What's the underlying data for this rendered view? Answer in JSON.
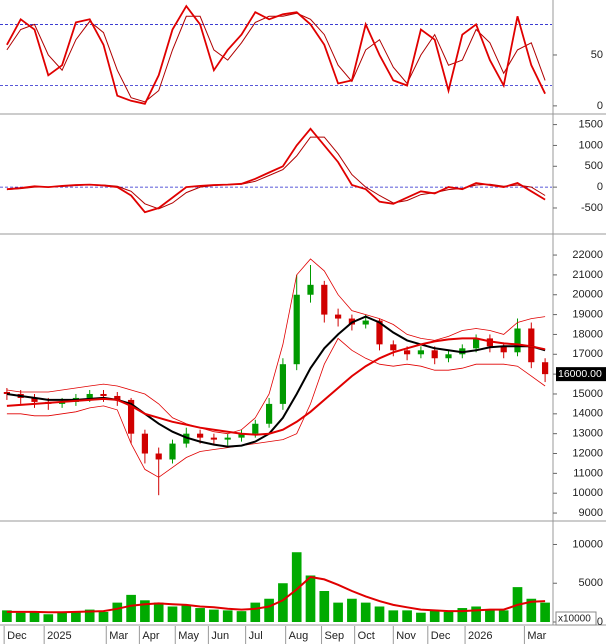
{
  "chart_data": [
    {
      "type": "line",
      "ylim": [
        -7,
        104
      ],
      "yticks": [
        0,
        50
      ],
      "ref_lines": [
        80,
        20
      ],
      "ref_color": "#2222cc",
      "series": [
        {
          "color": "#e00000",
          "values": [
            60,
            85,
            75,
            30,
            40,
            82,
            85,
            60,
            10,
            5,
            2,
            30,
            75,
            98,
            80,
            35,
            55,
            70,
            92,
            85,
            90,
            92,
            80,
            60,
            22,
            25,
            80,
            50,
            25,
            20,
            75,
            65,
            15,
            70,
            80,
            45,
            20,
            88,
            40,
            12
          ]
        },
        {
          "color": "#b00000",
          "values": [
            55,
            75,
            80,
            50,
            35,
            65,
            83,
            72,
            35,
            8,
            4,
            15,
            55,
            88,
            88,
            55,
            45,
            62,
            82,
            88,
            88,
            91,
            85,
            70,
            40,
            24,
            55,
            65,
            38,
            22,
            50,
            70,
            40,
            45,
            75,
            62,
            32,
            55,
            62,
            25
          ]
        }
      ]
    },
    {
      "type": "line",
      "ylim": [
        -1100,
        1730
      ],
      "yticks": [
        -500,
        0,
        500,
        1000,
        1500
      ],
      "ref_lines": [
        0
      ],
      "ref_color": "#2222cc",
      "series": [
        {
          "color": "#e00000",
          "values": [
            -50,
            -20,
            20,
            0,
            30,
            50,
            60,
            40,
            0,
            -200,
            -600,
            -500,
            -250,
            0,
            30,
            50,
            60,
            80,
            200,
            350,
            500,
            1000,
            1400,
            1000,
            600,
            50,
            -50,
            -350,
            -400,
            -250,
            -100,
            -150,
            0,
            -50,
            100,
            50,
            0,
            100,
            -100,
            -300
          ]
        },
        {
          "color": "#b00000",
          "values": [
            -60,
            -35,
            0,
            5,
            15,
            40,
            55,
            50,
            20,
            -100,
            -400,
            -520,
            -380,
            -130,
            0,
            40,
            55,
            70,
            140,
            280,
            420,
            750,
            1200,
            1200,
            800,
            300,
            0,
            -200,
            -380,
            -320,
            -180,
            -130,
            -60,
            -30,
            50,
            70,
            20,
            50,
            0,
            -200
          ]
        }
      ]
    },
    {
      "type": "candlestick",
      "ylim": [
        8650,
        22960
      ],
      "yticks": [
        9000,
        10000,
        11000,
        12000,
        13000,
        14000,
        15000,
        16000,
        17000,
        18000,
        19000,
        20000,
        21000,
        22000
      ],
      "up_color": "#009a00",
      "down_color": "#d00000",
      "open": [
        15100,
        15000,
        14800,
        14600,
        14500,
        14600,
        14800,
        15000,
        14900,
        14700,
        13000,
        12000,
        11700,
        12500,
        13000,
        12800,
        12700,
        12800,
        13000,
        13500,
        14500,
        16500,
        20000,
        20500,
        19000,
        18800,
        18500,
        18700,
        17500,
        17200,
        17000,
        17200,
        16800,
        17000,
        17300,
        17800,
        17400,
        17100,
        18300,
        16600
      ],
      "high": [
        15300,
        15200,
        15000,
        14800,
        14800,
        15000,
        15200,
        15200,
        15100,
        14800,
        13200,
        12300,
        12700,
        13300,
        13200,
        13000,
        13000,
        13200,
        13700,
        14800,
        16800,
        21000,
        21500,
        20700,
        19300,
        19000,
        19000,
        18800,
        17700,
        17400,
        17400,
        17400,
        17200,
        17500,
        18000,
        18000,
        17600,
        18800,
        18600,
        16800
      ],
      "low": [
        14700,
        14500,
        14300,
        14200,
        14300,
        14400,
        14600,
        14600,
        14400,
        12500,
        11500,
        9900,
        11500,
        12300,
        12500,
        12400,
        12400,
        12600,
        12800,
        13300,
        14200,
        16200,
        19600,
        18600,
        18400,
        18200,
        18300,
        17200,
        16900,
        16700,
        16800,
        16500,
        16600,
        16800,
        17100,
        17100,
        16800,
        16900,
        16300,
        15600
      ],
      "close": [
        15000,
        14800,
        14600,
        14500,
        14600,
        14800,
        15000,
        14900,
        14700,
        13000,
        12000,
        11700,
        12500,
        13000,
        12800,
        12700,
        12800,
        13000,
        13500,
        14500,
        16500,
        20000,
        20500,
        19000,
        18800,
        18500,
        18700,
        17500,
        17200,
        17000,
        17200,
        16800,
        17000,
        17300,
        17800,
        17400,
        17100,
        18300,
        16600,
        16000
      ],
      "overlays": [
        {
          "color": "#e00000",
          "width": 0.8,
          "values": [
            15200,
            15100,
            15100,
            15100,
            15200,
            15300,
            15400,
            15500,
            15400,
            15200,
            15000,
            14500,
            13800,
            13500,
            13300,
            13100,
            13000,
            13200,
            13800,
            15000,
            17500,
            21000,
            21800,
            21200,
            20000,
            19200,
            19000,
            18800,
            18500,
            18000,
            17800,
            17700,
            17900,
            18200,
            18300,
            18200,
            18000,
            18600,
            18800,
            18900
          ]
        },
        {
          "color": "#e00000",
          "width": 0.8,
          "values": [
            14000,
            14000,
            13900,
            13900,
            14000,
            14100,
            14300,
            14400,
            14200,
            12500,
            11200,
            10800,
            11300,
            11800,
            12100,
            12200,
            12300,
            12400,
            12500,
            12600,
            12700,
            13000,
            14500,
            16500,
            17800,
            17200,
            16800,
            16500,
            16400,
            16500,
            16400,
            16200,
            16200,
            16300,
            16500,
            16500,
            16500,
            16400,
            15900,
            15400
          ]
        },
        {
          "color": "#000000",
          "width": 2,
          "values": [
            15000,
            14900,
            14800,
            14700,
            14700,
            14700,
            14750,
            14800,
            14700,
            14500,
            14000,
            13500,
            13100,
            12800,
            12600,
            12450,
            12350,
            12400,
            12600,
            13000,
            13800,
            15000,
            16300,
            17300,
            18000,
            18600,
            18900,
            18600,
            18100,
            17700,
            17500,
            17300,
            17200,
            17100,
            17200,
            17350,
            17400,
            17400,
            17400,
            17200
          ]
        },
        {
          "color": "#e00000",
          "width": 2,
          "values": [
            14400,
            14450,
            14500,
            14550,
            14600,
            14650,
            14700,
            14750,
            14700,
            14400,
            14000,
            13800,
            13600,
            13450,
            13300,
            13200,
            13100,
            13000,
            12950,
            13000,
            13200,
            13600,
            14100,
            14700,
            15300,
            15900,
            16400,
            16800,
            17100,
            17300,
            17500,
            17650,
            17750,
            17800,
            17800,
            17650,
            17550,
            17500,
            17400,
            17250
          ]
        }
      ],
      "price_tag": {
        "value": 16000,
        "label": "16000.00"
      }
    },
    {
      "type": "bar",
      "ylim": [
        0,
        12900
      ],
      "yticks": [
        0,
        5000,
        10000
      ],
      "unit_label": "x10000",
      "color": "#00aa00",
      "values": [
        1500,
        1200,
        1300,
        1000,
        1200,
        1400,
        1600,
        1300,
        2500,
        3500,
        2800,
        2500,
        2000,
        2200,
        1800,
        1600,
        1500,
        1400,
        2500,
        3000,
        5000,
        9000,
        6000,
        4000,
        2500,
        3000,
        2500,
        2000,
        1500,
        1500,
        1200,
        1500,
        1300,
        1800,
        2000,
        1500,
        1500,
        4500,
        3000,
        2500
      ],
      "ma": {
        "color": "#e00000",
        "values": [
          1300,
          1300,
          1300,
          1250,
          1250,
          1300,
          1350,
          1400,
          1700,
          2100,
          2300,
          2400,
          2300,
          2200,
          2000,
          1900,
          1700,
          1600,
          1700,
          2000,
          2800,
          4200,
          5800,
          5500,
          4800,
          4000,
          3300,
          2700,
          2200,
          1900,
          1600,
          1500,
          1400,
          1400,
          1500,
          1600,
          1600,
          2200,
          2600,
          2700
        ]
      },
      "x": [
        0,
        1,
        2,
        3,
        4,
        5,
        6,
        7,
        8,
        9,
        10,
        11,
        12,
        13,
        14,
        15,
        16,
        17,
        18,
        19,
        20,
        21,
        22,
        23,
        24,
        25,
        26,
        27,
        28,
        29,
        30,
        31,
        32,
        33,
        34,
        35,
        36,
        37,
        38,
        39
      ],
      "xlim": [
        -0.5,
        39.5
      ],
      "xticks": [
        {
          "value": -0.2,
          "label": "Dec"
        },
        {
          "value": 2.7,
          "label": "2025"
        },
        {
          "value": 7.2,
          "label": "Mar"
        },
        {
          "value": 9.6,
          "label": "Apr"
        },
        {
          "value": 12.2,
          "label": "May"
        },
        {
          "value": 14.6,
          "label": "Jun"
        },
        {
          "value": 17.3,
          "label": "Jul"
        },
        {
          "value": 20.2,
          "label": "Aug"
        },
        {
          "value": 22.8,
          "label": "Sep"
        },
        {
          "value": 25.2,
          "label": "Oct"
        },
        {
          "value": 28,
          "label": "Nov"
        },
        {
          "value": 30.5,
          "label": "Dec"
        },
        {
          "value": 33.2,
          "label": "2026"
        },
        {
          "value": 37.5,
          "label": "Mar"
        }
      ]
    }
  ]
}
